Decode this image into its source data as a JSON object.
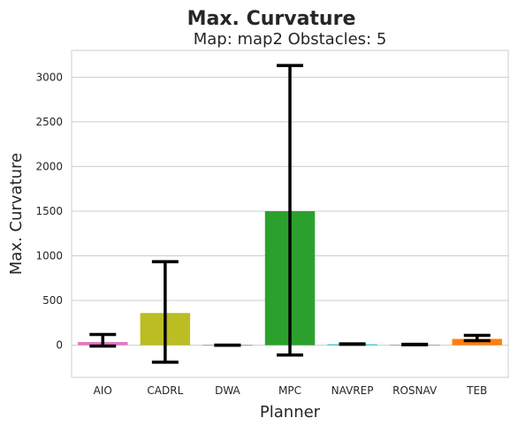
{
  "chart_data": {
    "type": "bar",
    "title": "Max. Curvature",
    "subtitle": "Map: map2 Obstacles: 5",
    "xlabel": "Planner",
    "ylabel": "Max. Curvature",
    "ylim": [
      -360,
      3300
    ],
    "yticks": [
      0,
      500,
      1000,
      1500,
      2000,
      2500,
      3000
    ],
    "grid": true,
    "categories": [
      "AIO",
      "CADRL",
      "DWA",
      "MPC",
      "NAVREP",
      "ROSNAV",
      "TEB"
    ],
    "values": [
      35,
      360,
      0,
      1500,
      10,
      5,
      70
    ],
    "error_low": [
      -10,
      -190,
      0,
      -110,
      10,
      5,
      50
    ],
    "error_high": [
      120,
      935,
      0,
      3130,
      15,
      10,
      110
    ],
    "colors": [
      "#e377c2",
      "#bcbd22",
      "#8c564b",
      "#2ca02c",
      "#17becf",
      "#7f7f7f",
      "#ff7f0e"
    ]
  }
}
